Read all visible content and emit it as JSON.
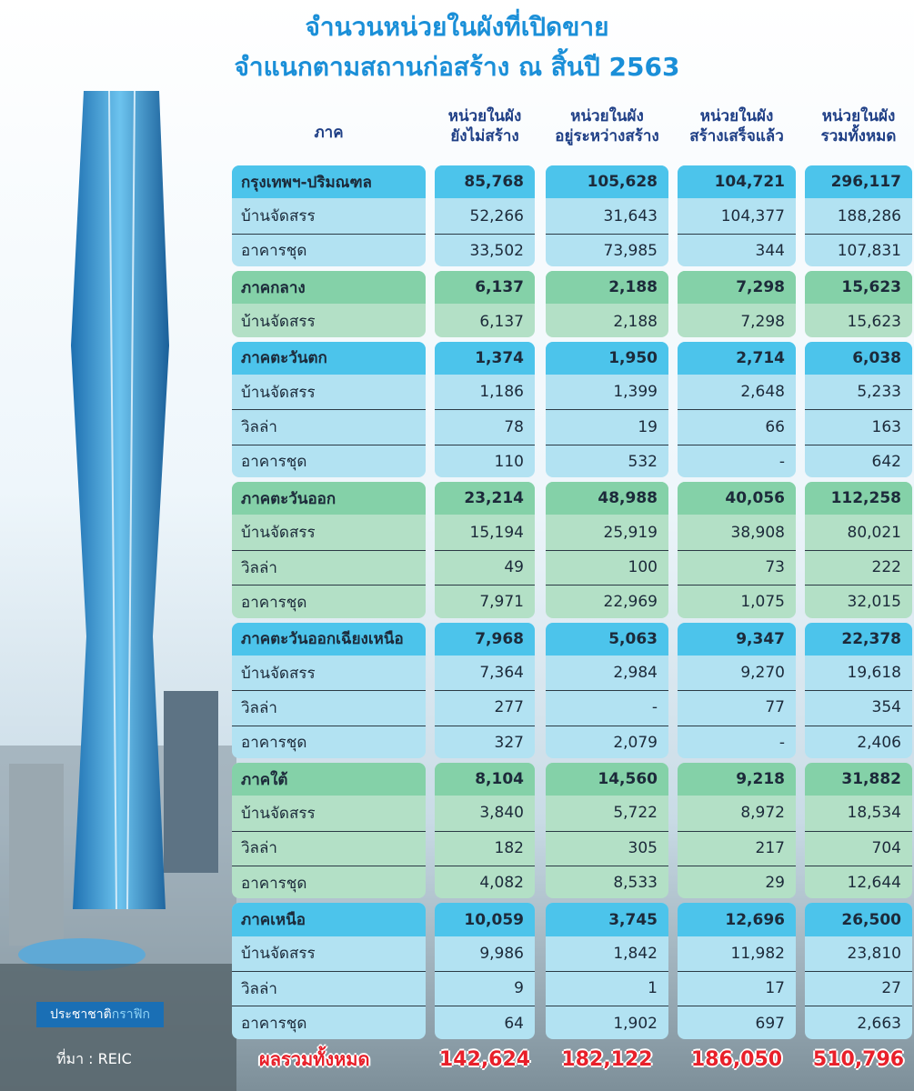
{
  "title": [
    "จำนวนหน่วยในผังที่เปิดขาย",
    "จำแนกตามสถานก่อสร้าง ณ สิ้นปี 2563"
  ],
  "table": {
    "columns": [
      [
        "ภาค"
      ],
      [
        "หน่วยในผัง",
        "ยังไม่สร้าง"
      ],
      [
        "หน่วยในผัง",
        "อยู่ระหว่างสร้าง"
      ],
      [
        "หน่วยในผัง",
        "สร้างเสร็จแล้ว"
      ],
      [
        "หน่วยในผัง",
        "รวมทั้งหมด"
      ]
    ],
    "groups": [
      {
        "name": "กรุงเทพฯ-ปริมณฑล",
        "values": [
          "85,768",
          "105,628",
          "104,721",
          "296,117"
        ],
        "rows": [
          {
            "label": "บ้านจัดสรร",
            "values": [
              "52,266",
              "31,643",
              "104,377",
              "188,286"
            ]
          },
          {
            "label": "อาคารชุด",
            "values": [
              "33,502",
              "73,985",
              "344",
              "107,831"
            ]
          }
        ]
      },
      {
        "name": "ภาคกลาง",
        "values": [
          "6,137",
          "2,188",
          "7,298",
          "15,623"
        ],
        "rows": [
          {
            "label": "บ้านจัดสรร",
            "values": [
              "6,137",
              "2,188",
              "7,298",
              "15,623"
            ]
          }
        ]
      },
      {
        "name": "ภาคตะวันตก",
        "values": [
          "1,374",
          "1,950",
          "2,714",
          "6,038"
        ],
        "rows": [
          {
            "label": "บ้านจัดสรร",
            "values": [
              "1,186",
              "1,399",
              "2,648",
              "5,233"
            ]
          },
          {
            "label": "วิลล่า",
            "values": [
              "78",
              "19",
              "66",
              "163"
            ]
          },
          {
            "label": "อาคารชุด",
            "values": [
              "110",
              "532",
              "-",
              "642"
            ]
          }
        ]
      },
      {
        "name": "ภาคตะวันออก",
        "values": [
          "23,214",
          "48,988",
          "40,056",
          "112,258"
        ],
        "rows": [
          {
            "label": "บ้านจัดสรร",
            "values": [
              "15,194",
              "25,919",
              "38,908",
              "80,021"
            ]
          },
          {
            "label": "วิลล่า",
            "values": [
              "49",
              "100",
              "73",
              "222"
            ]
          },
          {
            "label": "อาคารชุด",
            "values": [
              "7,971",
              "22,969",
              "1,075",
              "32,015"
            ]
          }
        ]
      },
      {
        "name": "ภาคตะวันออกเฉียงเหนือ",
        "values": [
          "7,968",
          "5,063",
          "9,347",
          "22,378"
        ],
        "rows": [
          {
            "label": "บ้านจัดสรร",
            "values": [
              "7,364",
              "2,984",
              "9,270",
              "19,618"
            ]
          },
          {
            "label": "วิลล่า",
            "values": [
              "277",
              "-",
              "77",
              "354"
            ]
          },
          {
            "label": "อาคารชุด",
            "values": [
              "327",
              "2,079",
              "-",
              "2,406"
            ]
          }
        ]
      },
      {
        "name": "ภาคใต้",
        "values": [
          "8,104",
          "14,560",
          "9,218",
          "31,882"
        ],
        "rows": [
          {
            "label": "บ้านจัดสรร",
            "values": [
              "3,840",
              "5,722",
              "8,972",
              "18,534"
            ]
          },
          {
            "label": "วิลล่า",
            "values": [
              "182",
              "305",
              "217",
              "704"
            ]
          },
          {
            "label": "อาคารชุด",
            "values": [
              "4,082",
              "8,533",
              "29",
              "12,644"
            ]
          }
        ]
      },
      {
        "name": "ภาคเหนือ",
        "values": [
          "10,059",
          "3,745",
          "12,696",
          "26,500"
        ],
        "rows": [
          {
            "label": "บ้านจัดสรร",
            "values": [
              "9,986",
              "1,842",
              "11,982",
              "23,810"
            ]
          },
          {
            "label": "วิลล่า",
            "values": [
              "9",
              "1",
              "17",
              "27"
            ]
          },
          {
            "label": "อาคารชุด",
            "values": [
              "64",
              "1,902",
              "697",
              "2,663"
            ]
          }
        ]
      }
    ],
    "total": {
      "label": "ผลรวมทั้งหมด",
      "values": [
        "142,624",
        "182,122",
        "186,050",
        "510,796"
      ]
    }
  },
  "source": "ที่มา : REIC",
  "credit": [
    "ประชาชาติ",
    "กราฟิก"
  ]
}
